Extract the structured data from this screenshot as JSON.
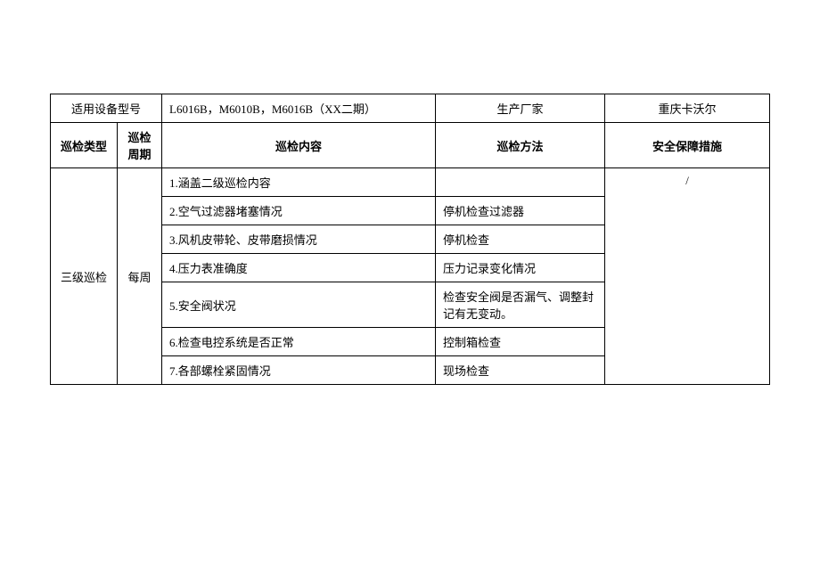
{
  "header": {
    "model_label": "适用设备型号",
    "model_value": "L6016B，M6010B，M6016B（XX二期）",
    "manufacturer_label": "生产厂家",
    "manufacturer_value": "重庆卡沃尔"
  },
  "columns": {
    "inspection_type": "巡检类型",
    "inspection_cycle": "巡检周期",
    "inspection_content": "巡检内容",
    "inspection_method": "巡检方法",
    "safety_measures": "安全保障措施"
  },
  "body": {
    "inspection_type": "三级巡检",
    "inspection_cycle": "每周",
    "safety_measures": "/",
    "items": [
      {
        "content": "1.涵盖二级巡检内容",
        "method": ""
      },
      {
        "content": "2.空气过滤器堵塞情况",
        "method": "停机检查过滤器"
      },
      {
        "content": "3.风机皮带轮、皮带磨损情况",
        "method": "停机检查"
      },
      {
        "content": "4.压力表准确度",
        "method": "压力记录变化情况"
      },
      {
        "content": "5.安全阀状况",
        "method": "检查安全阀是否漏气、调整封记有无变动。"
      },
      {
        "content": "6.检查电控系统是否正常",
        "method": "控制箱检查"
      },
      {
        "content": "7.各部螺栓紧固情况",
        "method": "现场检查"
      }
    ]
  }
}
